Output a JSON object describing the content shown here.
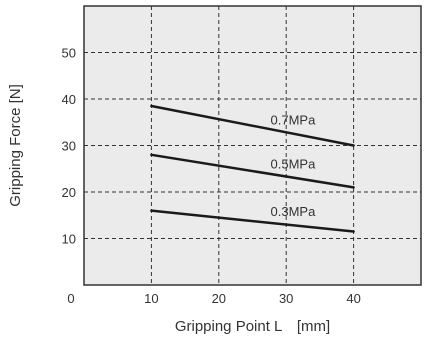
{
  "colors": {
    "background": "#ffffff",
    "plot_background": "#ebebeb",
    "frame": "#333333",
    "grid": "#333333",
    "series_line": "#1a1a1a",
    "text": "#333333"
  },
  "chart_data": {
    "type": "line",
    "title": "",
    "xlabel": "Gripping Point L　[mm]",
    "ylabel": "Gripping Force [N]",
    "xlim": [
      0,
      50
    ],
    "ylim": [
      0,
      60
    ],
    "xticks": [
      10,
      20,
      30,
      40
    ],
    "yticks": [
      10,
      20,
      30,
      40,
      50
    ],
    "origin_label": "0",
    "grid": true,
    "grid_style": "dashed",
    "series": [
      {
        "name": "0.7MPa",
        "x": [
          10,
          40
        ],
        "y": [
          38.5,
          30
        ]
      },
      {
        "name": "0.5MPa",
        "x": [
          10,
          40
        ],
        "y": [
          28,
          21
        ]
      },
      {
        "name": "0.3MPa",
        "x": [
          10,
          40
        ],
        "y": [
          16,
          11.5
        ]
      }
    ]
  }
}
